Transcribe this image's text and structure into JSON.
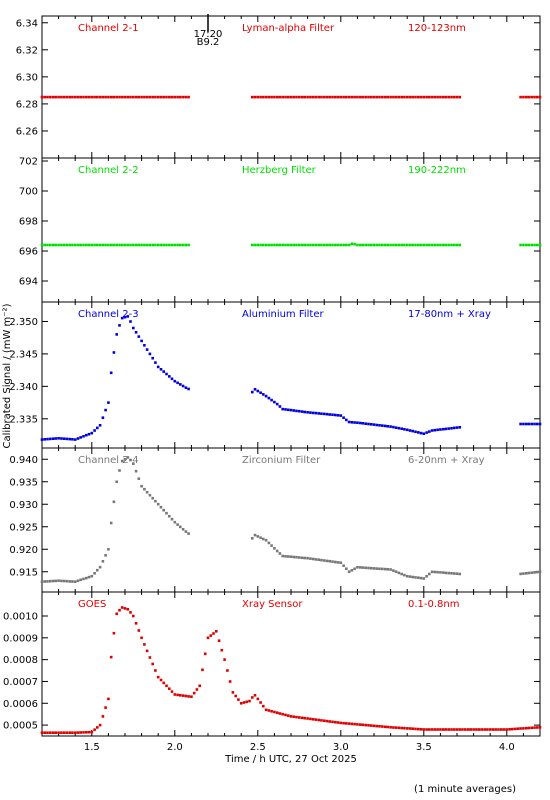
{
  "figure": {
    "xlabel": "Time / h UTC, 27 Oct 2025",
    "ylabel": "Calibrated Signal / (mW m⁻²)",
    "footnote": "(1 minute averages)",
    "event_marker": {
      "time": "17:20",
      "class": "B9.2",
      "x": 2.2
    }
  },
  "chart_data": [
    {
      "type": "scatter",
      "panel": "channel-2-1",
      "labels": {
        "channel": "Channel 2-1",
        "filter": "Lyman-alpha Filter",
        "band": "120-123nm"
      },
      "color": "#e00000",
      "xlim": [
        1.2,
        4.2
      ],
      "ylim": [
        6.24,
        6.345
      ],
      "yticks": [
        6.26,
        6.28,
        6.3,
        6.32,
        6.34
      ],
      "ytick_labels": [
        "6.26",
        "6.28",
        "6.30",
        "6.32",
        "6.34"
      ],
      "gaps": [
        [
          2.09,
          2.45
        ],
        [
          3.72,
          4.08
        ]
      ],
      "x": [
        1.2,
        1.5,
        1.8,
        2.08,
        2.45,
        2.8,
        3.1,
        3.4,
        3.72,
        4.08,
        4.2
      ],
      "y": [
        6.285,
        6.285,
        6.285,
        6.285,
        6.285,
        6.285,
        6.285,
        6.285,
        6.285,
        6.285,
        6.285
      ]
    },
    {
      "type": "scatter",
      "panel": "channel-2-2",
      "labels": {
        "channel": "Channel 2-2",
        "filter": "Herzberg Filter",
        "band": "190-222nm"
      },
      "color": "#00e000",
      "xlim": [
        1.2,
        4.2
      ],
      "ylim": [
        692.6,
        702.2
      ],
      "yticks": [
        694,
        696,
        698,
        700,
        702
      ],
      "ytick_labels": [
        "694",
        "696",
        "698",
        "700",
        "702"
      ],
      "gaps": [
        [
          2.09,
          2.45
        ],
        [
          3.72,
          4.08
        ]
      ],
      "x": [
        1.2,
        1.5,
        1.8,
        2.08,
        2.45,
        2.8,
        3.05,
        3.07,
        3.1,
        3.4,
        3.72,
        4.08,
        4.2
      ],
      "y": [
        696.4,
        696.4,
        696.4,
        696.4,
        696.4,
        696.4,
        696.4,
        696.5,
        696.4,
        696.4,
        696.4,
        696.4,
        696.4
      ]
    },
    {
      "type": "scatter",
      "panel": "channel-2-3",
      "labels": {
        "channel": "Channel 2-3",
        "filter": "Aluminium Filter",
        "band": "17-80nm + Xray"
      },
      "color": "#0000e0",
      "xlim": [
        1.2,
        4.2
      ],
      "ylim": [
        2.3305,
        2.353
      ],
      "yticks": [
        2.335,
        2.34,
        2.345,
        2.35
      ],
      "ytick_labels": [
        "2.335",
        "2.340",
        "2.345",
        "2.350"
      ],
      "gaps": [
        [
          2.09,
          2.45
        ],
        [
          3.72,
          4.08
        ]
      ],
      "x": [
        1.2,
        1.3,
        1.4,
        1.5,
        1.55,
        1.6,
        1.62,
        1.65,
        1.68,
        1.72,
        1.75,
        1.8,
        1.9,
        2.0,
        2.08,
        2.45,
        2.48,
        2.55,
        2.62,
        2.65,
        2.8,
        3.0,
        3.05,
        3.1,
        3.3,
        3.4,
        3.5,
        3.55,
        3.72,
        4.08,
        4.2
      ],
      "y": [
        2.3318,
        2.332,
        2.3318,
        2.3328,
        2.334,
        2.3375,
        2.343,
        2.348,
        2.3505,
        2.3508,
        2.349,
        2.347,
        2.343,
        2.3408,
        2.3396,
        2.3385,
        2.3396,
        2.3385,
        2.3372,
        2.3365,
        2.336,
        2.3355,
        2.3345,
        2.3344,
        2.3338,
        2.3333,
        2.3327,
        2.3332,
        2.3337,
        2.3342,
        2.3342
      ]
    },
    {
      "type": "scatter",
      "panel": "channel-2-4",
      "labels": {
        "channel": "Channel 2-4",
        "filter": "Zirconium Filter",
        "band": "6-20nm + Xray"
      },
      "color": "#787878",
      "xlim": [
        1.2,
        4.2
      ],
      "ylim": [
        0.9105,
        0.9425
      ],
      "yticks": [
        0.915,
        0.92,
        0.925,
        0.93,
        0.935,
        0.94
      ],
      "ytick_labels": [
        "0.915",
        "0.920",
        "0.925",
        "0.930",
        "0.935",
        "0.940"
      ],
      "gaps": [
        [
          2.09,
          2.45
        ],
        [
          3.72,
          4.08
        ]
      ],
      "x": [
        1.2,
        1.3,
        1.4,
        1.5,
        1.55,
        1.6,
        1.62,
        1.65,
        1.68,
        1.72,
        1.75,
        1.8,
        1.9,
        2.0,
        2.08,
        2.45,
        2.48,
        2.55,
        2.62,
        2.65,
        2.8,
        3.0,
        3.05,
        3.1,
        3.3,
        3.4,
        3.5,
        3.55,
        3.72,
        4.08,
        4.2
      ],
      "y": [
        0.9128,
        0.913,
        0.9128,
        0.914,
        0.916,
        0.92,
        0.927,
        0.935,
        0.9395,
        0.9405,
        0.939,
        0.934,
        0.93,
        0.926,
        0.9235,
        0.9215,
        0.9232,
        0.922,
        0.9195,
        0.9185,
        0.918,
        0.917,
        0.915,
        0.916,
        0.9155,
        0.914,
        0.9135,
        0.915,
        0.9145,
        0.9145,
        0.915
      ]
    },
    {
      "type": "scatter",
      "panel": "goes",
      "labels": {
        "channel": "GOES",
        "filter": "Xray Sensor",
        "band": "0.1-0.8nm"
      },
      "color": "#e00000",
      "xlim": [
        1.2,
        4.2
      ],
      "ylim": [
        0.00045,
        0.00111
      ],
      "yticks": [
        0.0005,
        0.0006,
        0.0007,
        0.0008,
        0.0009,
        0.001
      ],
      "ytick_labels": [
        "0.0005",
        "0.0006",
        "0.0007",
        "0.0008",
        "0.0009",
        "0.0010"
      ],
      "gaps": [],
      "x": [
        1.2,
        1.3,
        1.4,
        1.5,
        1.55,
        1.6,
        1.62,
        1.65,
        1.68,
        1.72,
        1.75,
        1.8,
        1.9,
        2.0,
        2.1,
        2.15,
        2.2,
        2.25,
        2.3,
        2.35,
        2.4,
        2.45,
        2.48,
        2.55,
        2.7,
        3.0,
        3.3,
        3.5,
        3.8,
        4.0,
        4.2
      ],
      "y": [
        0.000465,
        0.000465,
        0.000465,
        0.000468,
        0.0005,
        0.00062,
        0.00085,
        0.00101,
        0.00104,
        0.00103,
        0.001,
        0.0009,
        0.00072,
        0.00064,
        0.00063,
        0.00068,
        0.0009,
        0.00093,
        0.0008,
        0.00065,
        0.0006,
        0.00061,
        0.00064,
        0.00057,
        0.00054,
        0.00051,
        0.00049,
        0.00048,
        0.00048,
        0.00048,
        0.00049
      ]
    }
  ],
  "xaxis": {
    "ticks": [
      1.5,
      2.0,
      2.5,
      3.0,
      3.5,
      4.0
    ],
    "tick_labels": [
      "1.5",
      "2.0",
      "2.5",
      "3.0",
      "3.5",
      "4.0"
    ]
  }
}
